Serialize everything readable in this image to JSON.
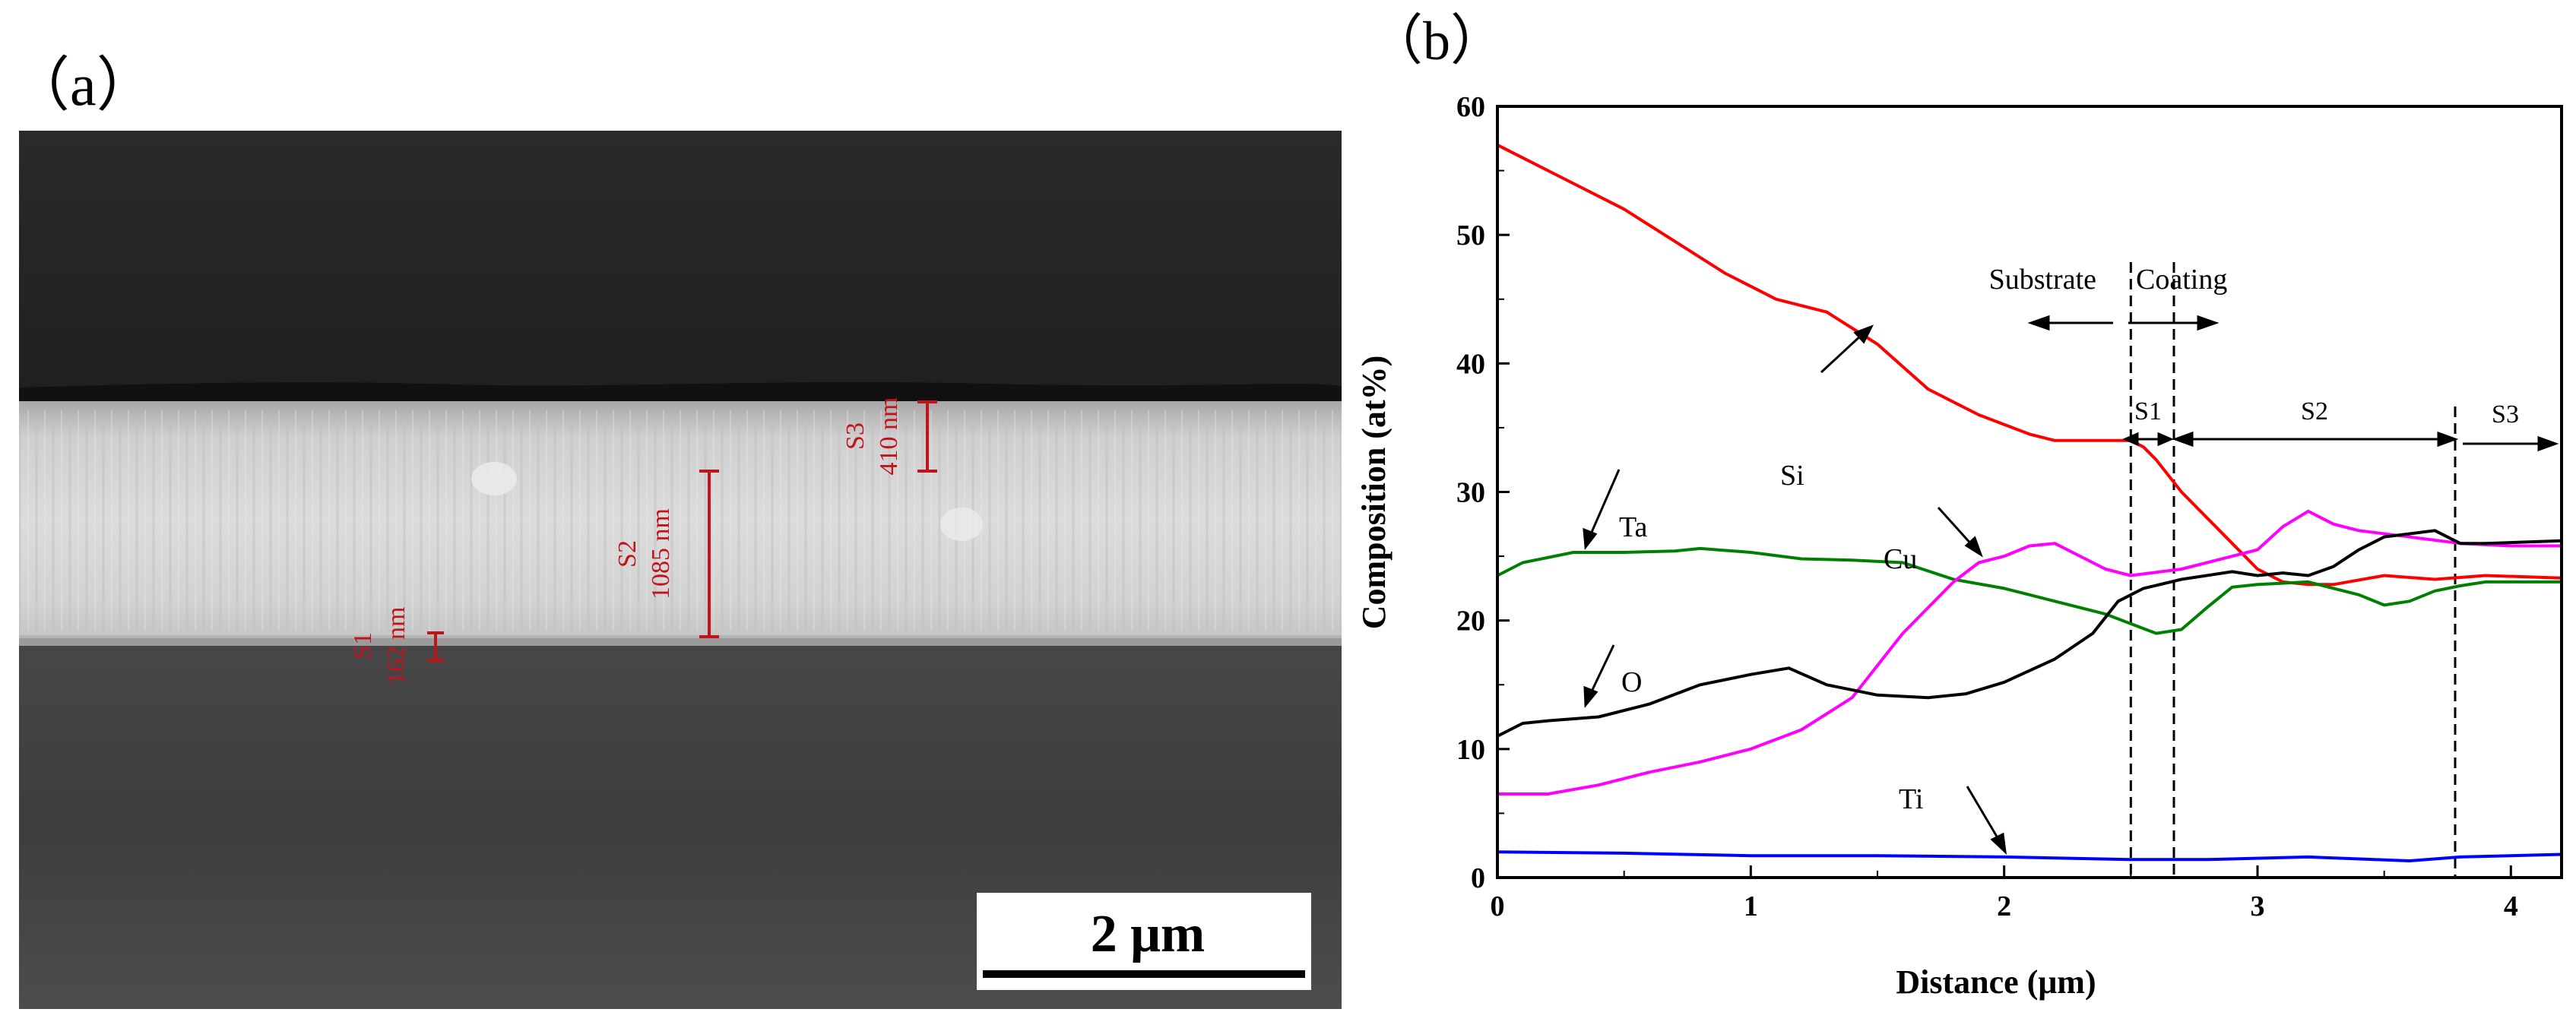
{
  "panel_a": {
    "label": "（a）",
    "scale_bar_label": "2 μm",
    "annotations": [
      {
        "name": "S1",
        "thickness": "162 nm"
      },
      {
        "name": "S2",
        "thickness": "1085 nm"
      },
      {
        "name": "S3",
        "thickness": "410 nm"
      }
    ],
    "annotation_color": "#c0141b"
  },
  "panel_b": {
    "label": "（b）",
    "divider_label_left": "Substrate",
    "divider_label_right": "Coating",
    "region_labels": [
      "S1",
      "S2",
      "S3"
    ],
    "element_labels": {
      "Si": "Si",
      "Ta": "Ta",
      "Cu": "Cu",
      "O": "O",
      "Ti": "Ti"
    }
  },
  "chart_data": {
    "type": "line",
    "title": "",
    "xlabel": "Distance (μm)",
    "ylabel": "Composition (at%)",
    "xlim": [
      0,
      4.2
    ],
    "ylim": [
      0,
      60
    ],
    "xticks": [
      0,
      1,
      2,
      3,
      4
    ],
    "yticks": [
      0,
      10,
      20,
      30,
      40,
      50,
      60
    ],
    "vertical_markers": [
      2.5,
      2.67,
      3.78
    ],
    "series": [
      {
        "name": "Si",
        "color": "#ff0000",
        "x": [
          0,
          0.1,
          0.2,
          0.3,
          0.5,
          0.7,
          0.9,
          1.0,
          1.1,
          1.3,
          1.5,
          1.7,
          1.9,
          2.1,
          2.2,
          2.4,
          2.5,
          2.55,
          2.6,
          2.7,
          2.8,
          2.9,
          3.0,
          3.1,
          3.2,
          3.3,
          3.5,
          3.7,
          3.9,
          4.2
        ],
        "y": [
          57,
          56,
          55,
          54,
          52,
          49.5,
          47,
          46,
          45,
          44,
          41.5,
          38,
          36,
          34.5,
          34,
          34,
          34,
          33.5,
          32.5,
          30,
          28,
          26,
          24,
          23,
          22.8,
          22.8,
          23.5,
          23.2,
          23.5,
          23.3
        ]
      },
      {
        "name": "Ta",
        "color": "#008000",
        "x": [
          0,
          0.1,
          0.3,
          0.5,
          0.7,
          0.8,
          1.0,
          1.2,
          1.4,
          1.6,
          1.8,
          2.0,
          2.2,
          2.4,
          2.6,
          2.7,
          2.8,
          2.9,
          3.0,
          3.2,
          3.4,
          3.5,
          3.6,
          3.7,
          3.8,
          3.9,
          4.2
        ],
        "y": [
          23.5,
          24.5,
          25.3,
          25.3,
          25.4,
          25.6,
          25.3,
          24.8,
          24.7,
          24.5,
          23.2,
          22.5,
          21.5,
          20.5,
          19,
          19.3,
          21,
          22.6,
          22.8,
          23,
          22,
          21.2,
          21.5,
          22.3,
          22.7,
          23,
          23
        ]
      },
      {
        "name": "Cu",
        "color": "#ff00ff",
        "x": [
          0,
          0.2,
          0.4,
          0.6,
          0.8,
          1.0,
          1.2,
          1.4,
          1.6,
          1.8,
          1.9,
          2.0,
          2.1,
          2.2,
          2.3,
          2.4,
          2.5,
          2.7,
          2.9,
          3.0,
          3.1,
          3.2,
          3.3,
          3.4,
          3.6,
          3.8,
          4.0,
          4.2
        ],
        "y": [
          6.5,
          6.5,
          7.2,
          8.2,
          9,
          10,
          11.5,
          14,
          19,
          23,
          24.5,
          25,
          25.8,
          26,
          25,
          24,
          23.5,
          24,
          25,
          25.5,
          27.3,
          28.5,
          27.5,
          27,
          26.5,
          26,
          25.8,
          25.8
        ]
      },
      {
        "name": "O",
        "color": "#000000",
        "x": [
          0,
          0.1,
          0.2,
          0.4,
          0.6,
          0.8,
          1.0,
          1.15,
          1.3,
          1.5,
          1.7,
          1.85,
          2.0,
          2.2,
          2.35,
          2.45,
          2.55,
          2.7,
          2.9,
          3.0,
          3.1,
          3.2,
          3.3,
          3.4,
          3.5,
          3.7,
          3.8,
          3.9,
          4.2
        ],
        "y": [
          11,
          12,
          12.2,
          12.5,
          13.5,
          15,
          15.8,
          16.3,
          15,
          14.2,
          14,
          14.3,
          15.2,
          17,
          19,
          21.5,
          22.5,
          23.2,
          23.8,
          23.5,
          23.7,
          23.5,
          24.2,
          25.5,
          26.5,
          27,
          26,
          26,
          26.2
        ]
      },
      {
        "name": "Ti",
        "color": "#0000ff",
        "x": [
          0,
          0.5,
          1.0,
          1.5,
          2.0,
          2.5,
          2.8,
          3.2,
          3.6,
          3.8,
          4.2
        ],
        "y": [
          2,
          1.9,
          1.7,
          1.7,
          1.6,
          1.4,
          1.4,
          1.6,
          1.3,
          1.6,
          1.8
        ]
      }
    ]
  }
}
